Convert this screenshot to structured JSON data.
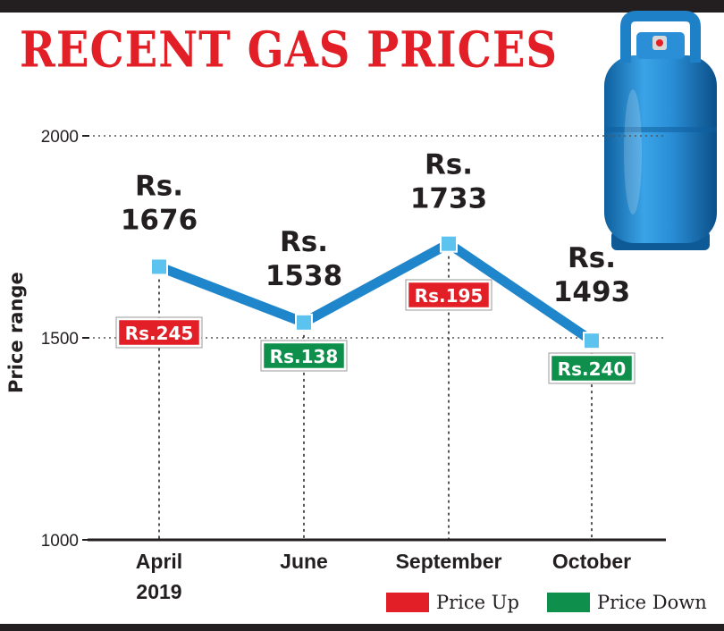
{
  "chart_data": {
    "type": "line",
    "title": "RECENT GAS PRICES",
    "ylabel": "Price range",
    "ylim": [
      1000,
      2000
    ],
    "yticks": [
      "2000",
      "1500",
      "1000"
    ],
    "categories": [
      "April 2019",
      "June",
      "September",
      "October"
    ],
    "category_lines": [
      [
        "April",
        "2019"
      ],
      [
        "June"
      ],
      [
        "September"
      ],
      [
        "October"
      ]
    ],
    "values": [
      1676,
      1538,
      1733,
      1493
    ],
    "price_labels": [
      [
        "Rs.",
        "1676"
      ],
      [
        "Rs.",
        "1538"
      ],
      [
        "Rs.",
        "1733"
      ],
      [
        "Rs.",
        "1493"
      ]
    ],
    "changes": [
      {
        "text": "Rs.245",
        "direction": "up"
      },
      {
        "text": "Rs.138",
        "direction": "down"
      },
      {
        "text": "Rs.195",
        "direction": "up"
      },
      {
        "text": "Rs.240",
        "direction": "down"
      }
    ],
    "grid": "dotted horizontal at 2000 and 1500, dotted vertical at each category",
    "legend": [
      {
        "label": "Price Up",
        "color": "#e21e26"
      },
      {
        "label": "Price Down",
        "color": "#0e8f4c"
      }
    ],
    "legend_position": "bottom-right",
    "colors": {
      "line": "#1f86cc",
      "marker": "#5cc3ef",
      "up": "#e21e26",
      "down": "#0e8f4c",
      "axis": "#231f20",
      "title": "#e21e26"
    }
  },
  "illustration": {
    "icon": "gas-cylinder-icon",
    "color": "#1e80c6"
  }
}
